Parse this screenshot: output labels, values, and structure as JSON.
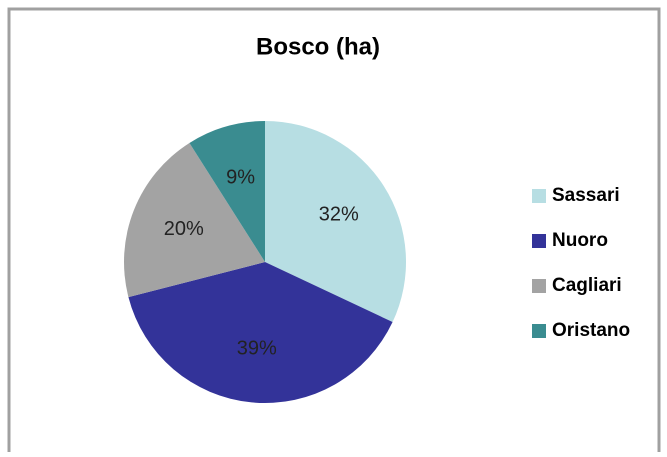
{
  "chart_data": {
    "type": "pie",
    "title": "Bosco (ha)",
    "categories": [
      "Sassari",
      "Nuoro",
      "Cagliari",
      "Oristano"
    ],
    "values": [
      32,
      39,
      20,
      9
    ],
    "value_labels": [
      "32%",
      "39%",
      "20%",
      "9%"
    ],
    "colors": [
      "#b7dee3",
      "#333399",
      "#a3a3a3",
      "#3a8c90"
    ],
    "legend": "right"
  }
}
